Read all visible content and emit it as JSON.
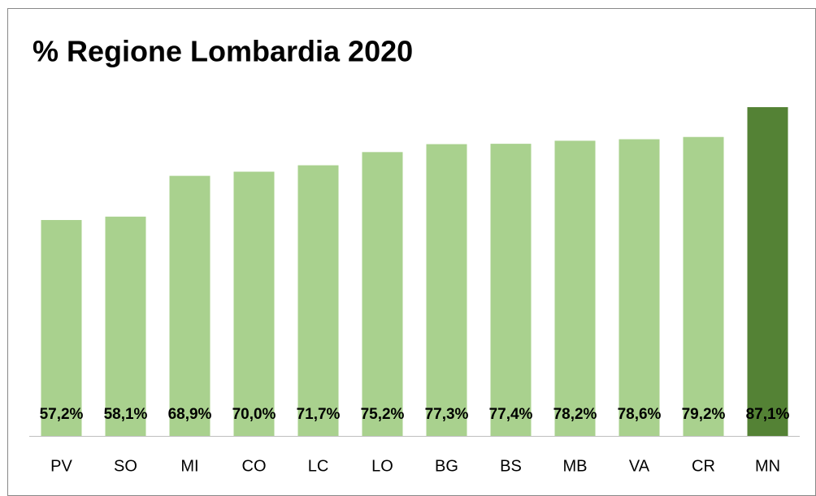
{
  "chart_data": {
    "type": "bar",
    "title": "% Regione Lombardia 2020",
    "categories": [
      "PV",
      "SO",
      "MI",
      "CO",
      "LC",
      "LO",
      "BG",
      "BS",
      "MB",
      "VA",
      "CR",
      "MN"
    ],
    "values": [
      57.2,
      58.1,
      68.9,
      70.0,
      71.7,
      75.2,
      77.3,
      77.4,
      78.2,
      78.6,
      79.2,
      87.1
    ],
    "value_labels": [
      "57,2%",
      "58,1%",
      "68,9%",
      "70,0%",
      "71,7%",
      "75,2%",
      "77,3%",
      "77,4%",
      "78,2%",
      "78,6%",
      "79,2%",
      "87,1%"
    ],
    "colors": [
      "#a9d18e",
      "#a9d18e",
      "#a9d18e",
      "#a9d18e",
      "#a9d18e",
      "#a9d18e",
      "#a9d18e",
      "#a9d18e",
      "#a9d18e",
      "#a9d18e",
      "#a9d18e",
      "#548235"
    ]
  }
}
